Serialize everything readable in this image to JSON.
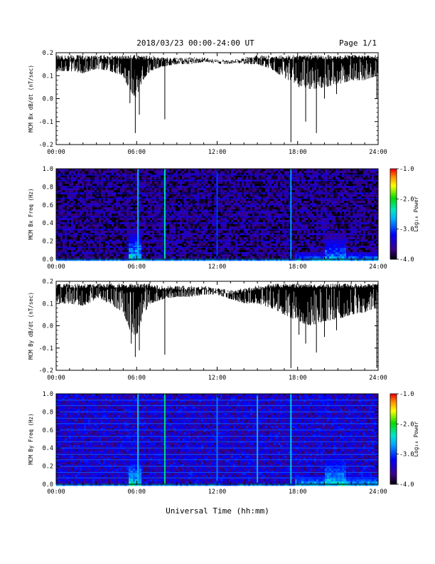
{
  "header": {
    "title": "2018/03/23  00:00-24:00 UT",
    "page": "Page 1/1"
  },
  "footer": {
    "xlabel": "Universal Time (hh:mm)"
  },
  "chart_data": [
    {
      "type": "line",
      "ylabel": "MCM Bx dB/dt (nT/sec)",
      "xlabel": "",
      "xlim": [
        0,
        24
      ],
      "ylim": [
        -0.2,
        0.2
      ],
      "xticks": [
        "00:00",
        "06:00",
        "12:00",
        "18:00",
        "24:00"
      ],
      "yticks": [
        "-0.2",
        "-0.1",
        "0.0",
        "0.1",
        "0.2"
      ],
      "series_color": "#000000",
      "series": [
        {
          "name": "",
          "envelope_hours": [
            0,
            1,
            2,
            3,
            4,
            5,
            5.5,
            6,
            6.5,
            7,
            8,
            9,
            10,
            11,
            12,
            13,
            14,
            15,
            16,
            17,
            18,
            19,
            20,
            21,
            22,
            23,
            24
          ],
          "upper": [
            0.19,
            0.19,
            0.19,
            0.19,
            0.19,
            0.19,
            0.19,
            0.19,
            0.19,
            0.19,
            0.18,
            0.18,
            0.18,
            0.18,
            0.17,
            0.17,
            0.18,
            0.19,
            0.19,
            0.19,
            0.19,
            0.19,
            0.19,
            0.19,
            0.19,
            0.19,
            0.19
          ],
          "lower": [
            0.12,
            0.12,
            0.11,
            0.13,
            0.12,
            0.1,
            0.03,
            0.0,
            0.08,
            0.12,
            0.14,
            0.15,
            0.15,
            0.16,
            0.16,
            0.16,
            0.15,
            0.15,
            0.13,
            0.09,
            0.06,
            0.04,
            0.05,
            0.06,
            0.08,
            0.08,
            0.1
          ],
          "spikes": [
            {
              "x": 5.5,
              "y": -0.02
            },
            {
              "x": 5.9,
              "y": -0.15
            },
            {
              "x": 6.2,
              "y": -0.07
            },
            {
              "x": 8.1,
              "y": -0.09
            },
            {
              "x": 17.5,
              "y": -0.19
            },
            {
              "x": 18.1,
              "y": 0.05
            },
            {
              "x": 18.6,
              "y": -0.1
            },
            {
              "x": 19.4,
              "y": -0.15
            },
            {
              "x": 20.0,
              "y": 0.0
            },
            {
              "x": 20.9,
              "y": 0.02
            },
            {
              "x": 23.9,
              "y": 0.0
            }
          ]
        }
      ]
    },
    {
      "type": "heatmap",
      "ylabel": "MCM Bx Freq (Hz)",
      "xlabel": "",
      "xlim": [
        0,
        24
      ],
      "ylim": [
        0,
        1.0
      ],
      "xticks": [
        "00:00",
        "06:00",
        "12:00",
        "18:00",
        "24:00"
      ],
      "yticks": [
        "0.0",
        "0.2",
        "0.4",
        "0.6",
        "0.8",
        "1.0"
      ],
      "colorbar": {
        "label": "Log₁₀ Power",
        "range": [
          -4.0,
          -1.0
        ],
        "ticks": [
          "-1.0",
          "-2.0",
          "-3.0",
          "-4.0"
        ]
      },
      "background_log_power": -3.7,
      "harmonic_lines_hz": [
        0.07,
        0.13,
        0.2,
        0.27,
        0.33,
        0.4,
        0.47,
        0.53,
        0.6,
        0.67,
        0.73,
        0.8,
        0.87,
        0.93
      ],
      "event_columns": [
        {
          "x": 6.1,
          "log_power": -2.6
        },
        {
          "x": 8.1,
          "log_power": -2.3
        },
        {
          "x": 12.0,
          "log_power": -3.0
        },
        {
          "x": 17.5,
          "log_power": -2.7
        }
      ],
      "low_freq_enhancements": [
        {
          "x_start": 5.4,
          "x_end": 6.3,
          "f_max": 0.35,
          "peak_log_power": -1.9
        },
        {
          "x_start": 17.8,
          "x_end": 24.0,
          "f_max": 0.1,
          "peak_log_power": -2.3
        },
        {
          "x_start": 20.0,
          "x_end": 21.5,
          "f_max": 0.3,
          "peak_log_power": -2.3
        }
      ]
    },
    {
      "type": "line",
      "ylabel": "MCM By dB/dt (nT/sec)",
      "xlabel": "",
      "xlim": [
        0,
        24
      ],
      "ylim": [
        -0.2,
        0.2
      ],
      "xticks": [
        "00:00",
        "06:00",
        "12:00",
        "18:00",
        "24:00"
      ],
      "yticks": [
        "-0.2",
        "-0.1",
        "0.0",
        "0.1",
        "0.2"
      ],
      "series_color": "#000000",
      "series": [
        {
          "name": "",
          "envelope_hours": [
            0,
            1,
            2,
            3,
            4,
            5,
            5.5,
            6,
            6.5,
            7,
            8,
            9,
            10,
            11,
            12,
            13,
            14,
            15,
            16,
            17,
            18,
            19,
            20,
            21,
            22,
            23,
            24
          ],
          "upper": [
            0.19,
            0.19,
            0.19,
            0.19,
            0.19,
            0.19,
            0.19,
            0.19,
            0.19,
            0.19,
            0.18,
            0.18,
            0.18,
            0.18,
            0.17,
            0.16,
            0.17,
            0.18,
            0.19,
            0.19,
            0.19,
            0.19,
            0.19,
            0.19,
            0.19,
            0.19,
            0.19
          ],
          "lower": [
            0.1,
            0.1,
            0.09,
            0.12,
            0.1,
            0.06,
            -0.02,
            -0.05,
            0.05,
            0.1,
            0.12,
            0.13,
            0.13,
            0.14,
            0.14,
            0.12,
            0.1,
            0.1,
            0.08,
            0.05,
            0.02,
            0.0,
            0.02,
            0.03,
            0.05,
            0.06,
            0.08
          ],
          "spikes": [
            {
              "x": 5.6,
              "y": -0.08
            },
            {
              "x": 5.9,
              "y": -0.14
            },
            {
              "x": 6.2,
              "y": -0.11
            },
            {
              "x": 8.1,
              "y": -0.13
            },
            {
              "x": 17.5,
              "y": -0.19
            },
            {
              "x": 18.1,
              "y": -0.04
            },
            {
              "x": 18.6,
              "y": -0.08
            },
            {
              "x": 19.4,
              "y": -0.12
            },
            {
              "x": 20.0,
              "y": -0.05
            },
            {
              "x": 20.9,
              "y": -0.02
            },
            {
              "x": 23.9,
              "y": -0.19
            }
          ]
        }
      ]
    },
    {
      "type": "heatmap",
      "ylabel": "MCM By Freq (Hz)",
      "xlabel": "",
      "xlim": [
        0,
        24
      ],
      "ylim": [
        0,
        1.0
      ],
      "xticks": [
        "00:00",
        "06:00",
        "12:00",
        "18:00",
        "24:00"
      ],
      "yticks": [
        "0.0",
        "0.2",
        "0.4",
        "0.6",
        "0.8",
        "1.0"
      ],
      "colorbar": {
        "label": "Log₁₀ Power",
        "range": [
          -4.0,
          -1.0
        ],
        "ticks": [
          "-1.0",
          "-2.0",
          "-3.0",
          "-4.0"
        ]
      },
      "background_log_power": -3.4,
      "harmonic_lines_hz": [
        0.07,
        0.13,
        0.2,
        0.27,
        0.33,
        0.4,
        0.47,
        0.53,
        0.6,
        0.67,
        0.73,
        0.8,
        0.87,
        0.93
      ],
      "event_columns": [
        {
          "x": 6.1,
          "log_power": -2.5
        },
        {
          "x": 8.1,
          "log_power": -2.2
        },
        {
          "x": 12.0,
          "log_power": -2.8
        },
        {
          "x": 15.0,
          "log_power": -2.6
        },
        {
          "x": 17.5,
          "log_power": -2.5
        }
      ],
      "low_freq_enhancements": [
        {
          "x_start": 5.3,
          "x_end": 6.3,
          "f_max": 0.3,
          "peak_log_power": -2.0
        },
        {
          "x_start": 17.8,
          "x_end": 24.0,
          "f_max": 0.12,
          "peak_log_power": -2.3
        },
        {
          "x_start": 20.0,
          "x_end": 21.6,
          "f_max": 0.32,
          "peak_log_power": -2.2
        }
      ]
    }
  ]
}
